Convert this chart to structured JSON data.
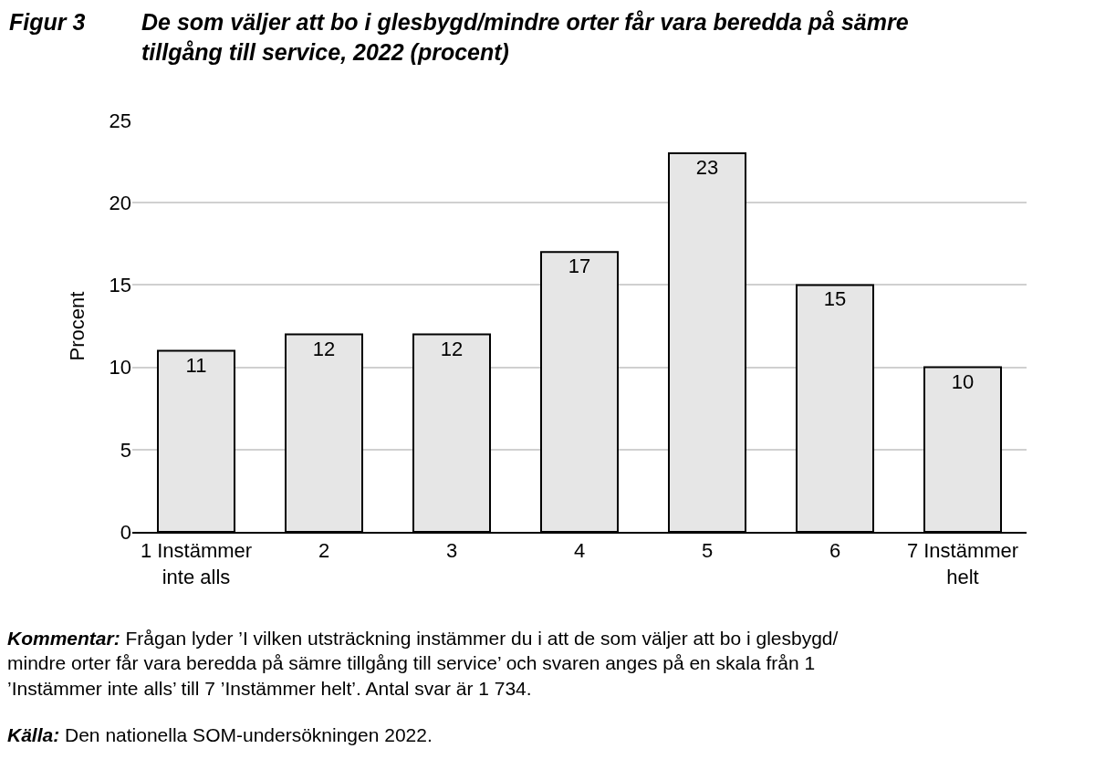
{
  "chart_data": {
    "type": "bar",
    "title": "Figur 3",
    "subtitle": "De som väljer att bo i glesbygd/mindre orter får vara beredda på sämre tillgång till service, 2022 (procent)",
    "ylabel": "Procent",
    "categories": [
      "1 Instämmer inte alls",
      "2",
      "3",
      "4",
      "5",
      "6",
      "7 Instämmer helt"
    ],
    "values": [
      11,
      12,
      12,
      17,
      23,
      15,
      10
    ],
    "color": "#e6e6e6",
    "ylim": [
      0,
      25
    ],
    "yticks": [
      0,
      5,
      10,
      15,
      20,
      25
    ],
    "grid": "y",
    "data_labels": true,
    "annotations": [
      "Kommentar: Frågan lyder ’I vilken utsträckning instämmer du i att de som väljer att bo i glesbygd/ mindre orter får vara beredda på sämre tillgång till service’ och svaren anges på en skala från 1 ’Instämmer inte alls’ till 7 ’Instämmer helt’. Antal svar är 1 734.",
      "Källa: Den nationella SOM-undersökningen 2022."
    ]
  }
}
